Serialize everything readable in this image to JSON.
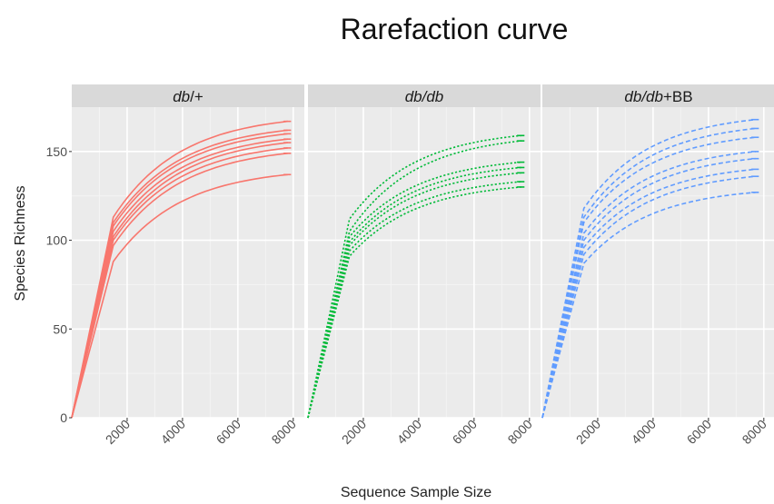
{
  "chart_data": {
    "type": "line",
    "title": "Rarefaction curve",
    "xlabel": "Sequence Sample Size",
    "ylabel": "Species Richness",
    "xlim": [
      0,
      8400
    ],
    "ylim": [
      0,
      175
    ],
    "x_ticks": [
      "2000",
      "4000",
      "6000",
      "8000"
    ],
    "y_ticks": [
      "0",
      "50",
      "100",
      "150"
    ],
    "grid": true,
    "legend": "none",
    "panels": [
      {
        "label_main": "db",
        "label_suffix": "/+",
        "color": "#F8766D",
        "line_style": "solid",
        "max_x": 7800,
        "series": [
          {
            "break_y": 113,
            "final_y": 167
          },
          {
            "break_y": 110,
            "final_y": 162
          },
          {
            "break_y": 108,
            "final_y": 160
          },
          {
            "break_y": 105,
            "final_y": 157
          },
          {
            "break_y": 102,
            "final_y": 155
          },
          {
            "break_y": 100,
            "final_y": 152
          },
          {
            "break_y": 97,
            "final_y": 149
          },
          {
            "break_y": 88,
            "final_y": 137
          }
        ]
      },
      {
        "label_main": "db/db",
        "label_suffix": "",
        "color": "#00BA38",
        "line_style": "dotted",
        "max_x": 7700,
        "series": [
          {
            "break_y": 112,
            "final_y": 159
          },
          {
            "break_y": 105,
            "final_y": 156
          },
          {
            "break_y": 102,
            "final_y": 144
          },
          {
            "break_y": 99,
            "final_y": 141
          },
          {
            "break_y": 97,
            "final_y": 138
          },
          {
            "break_y": 94,
            "final_y": 133
          },
          {
            "break_y": 91,
            "final_y": 130
          }
        ]
      },
      {
        "label_main": "db/db",
        "label_suffix": "+BB",
        "color": "#619CFF",
        "line_style": "dashed",
        "max_x": 7700,
        "series": [
          {
            "break_y": 118,
            "final_y": 168
          },
          {
            "break_y": 113,
            "final_y": 163
          },
          {
            "break_y": 110,
            "final_y": 158
          },
          {
            "break_y": 104,
            "final_y": 150
          },
          {
            "break_y": 100,
            "final_y": 146
          },
          {
            "break_y": 96,
            "final_y": 140
          },
          {
            "break_y": 92,
            "final_y": 136
          },
          {
            "break_y": 87,
            "final_y": 127
          }
        ]
      }
    ]
  }
}
